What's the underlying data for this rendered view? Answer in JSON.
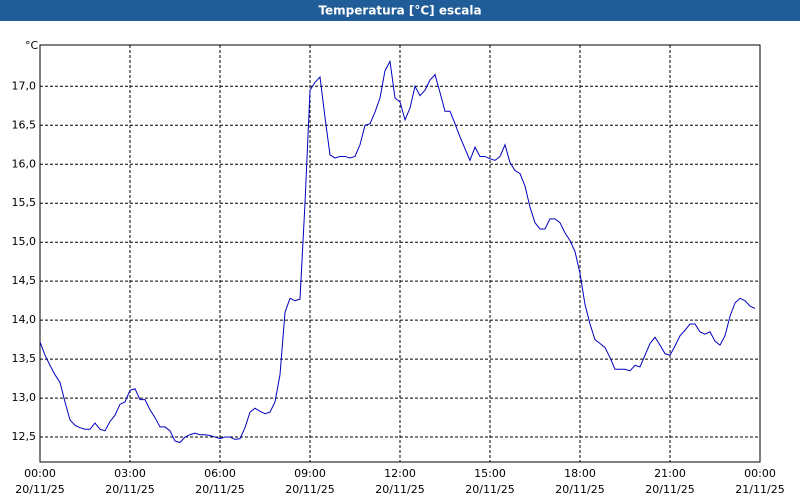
{
  "chart_data": {
    "type": "line",
    "title": "Temperatura [°C] escala",
    "y_label": "°C",
    "x": [
      0,
      10,
      20,
      30,
      40,
      50,
      60,
      70,
      80,
      90,
      100,
      110,
      120,
      130,
      140,
      150,
      160,
      170,
      180,
      190,
      200,
      210,
      220,
      230,
      240,
      250,
      260,
      270,
      280,
      290,
      300,
      310,
      320,
      330,
      340,
      350,
      360,
      370,
      380,
      390,
      400,
      410,
      420,
      430,
      440,
      450,
      460,
      470,
      480,
      490,
      500,
      510,
      520,
      530,
      540,
      550,
      560,
      570,
      580,
      590,
      600,
      610,
      620,
      630,
      640,
      650,
      660,
      670,
      680,
      690,
      700,
      710,
      720,
      730,
      740,
      750,
      760,
      770,
      780,
      790,
      800,
      810,
      820,
      830,
      840,
      850,
      860,
      870,
      880,
      890,
      900,
      910,
      920,
      930,
      940,
      950,
      960,
      970,
      980,
      990,
      1000,
      1010,
      1020,
      1030,
      1040,
      1050,
      1060,
      1070,
      1080,
      1090,
      1100,
      1110,
      1120,
      1130,
      1140,
      1150,
      1160,
      1170,
      1180,
      1190,
      1200,
      1210,
      1220,
      1230,
      1240,
      1250,
      1260,
      1270,
      1280,
      1290,
      1300,
      1310,
      1320,
      1330,
      1340,
      1350,
      1360,
      1370,
      1380,
      1390,
      1400,
      1410,
      1420,
      1430
    ],
    "series": [
      {
        "color": "#0000c0",
        "values": [
          13.72,
          13.55,
          13.42,
          13.3,
          13.2,
          12.95,
          12.72,
          12.65,
          12.62,
          12.6,
          12.6,
          12.68,
          12.6,
          12.58,
          12.7,
          12.78,
          12.92,
          12.95,
          13.1,
          13.12,
          12.98,
          12.98,
          12.85,
          12.75,
          12.63,
          12.63,
          12.58,
          12.45,
          12.43,
          12.5,
          12.53,
          12.55,
          12.53,
          12.53,
          12.52,
          12.5,
          12.48,
          12.5,
          12.5,
          12.47,
          12.48,
          12.62,
          12.82,
          12.87,
          12.83,
          12.8,
          12.82,
          12.95,
          13.3,
          14.1,
          14.28,
          14.25,
          14.27,
          15.5,
          16.95,
          17.05,
          17.12,
          16.6,
          16.12,
          16.08,
          16.1,
          16.1,
          16.08,
          16.1,
          16.25,
          16.5,
          16.52,
          16.67,
          16.85,
          17.2,
          17.32,
          16.85,
          16.8,
          16.57,
          16.72,
          17.0,
          16.88,
          16.95,
          17.08,
          17.15,
          16.92,
          16.68,
          16.68,
          16.52,
          16.35,
          16.2,
          16.05,
          16.22,
          16.1,
          16.1,
          16.07,
          16.05,
          16.1,
          16.25,
          16.02,
          15.92,
          15.88,
          15.72,
          15.45,
          15.25,
          15.17,
          15.17,
          15.3,
          15.3,
          15.25,
          15.12,
          15.02,
          14.88,
          14.6,
          14.2,
          13.95,
          13.75,
          13.7,
          13.65,
          13.52,
          13.37,
          13.37,
          13.37,
          13.35,
          13.42,
          13.4,
          13.55,
          13.7,
          13.78,
          13.68,
          13.57,
          13.55,
          13.67,
          13.8,
          13.87,
          13.95,
          13.95,
          13.85,
          13.82,
          13.85,
          13.73,
          13.68,
          13.8,
          14.05,
          14.22,
          14.28,
          14.25,
          14.18,
          14.15
        ]
      }
    ],
    "xlim": [
      0,
      1440
    ],
    "xticks": [
      {
        "value": 0,
        "label": "00:00",
        "date": "20/11/25"
      },
      {
        "value": 180,
        "label": "03:00",
        "date": "20/11/25"
      },
      {
        "value": 360,
        "label": "06:00",
        "date": "20/11/25"
      },
      {
        "value": 540,
        "label": "09:00",
        "date": "20/11/25"
      },
      {
        "value": 720,
        "label": "12:00",
        "date": "20/11/25"
      },
      {
        "value": 900,
        "label": "15:00",
        "date": "20/11/25"
      },
      {
        "value": 1080,
        "label": "18:00",
        "date": "20/11/25"
      },
      {
        "value": 1260,
        "label": "21:00",
        "date": "20/11/25"
      },
      {
        "value": 1440,
        "label": "00:00",
        "date": "21/11/25"
      }
    ],
    "ylim": [
      12.18,
      17.53
    ],
    "yticks": [
      {
        "value": 12.5,
        "label": "12,5"
      },
      {
        "value": 13,
        "label": "13,0"
      },
      {
        "value": 13.5,
        "label": "13,5"
      },
      {
        "value": 14,
        "label": "14,0"
      },
      {
        "value": 14.5,
        "label": "14,5"
      },
      {
        "value": 15,
        "label": "15,0"
      },
      {
        "value": 15.5,
        "label": "15,5"
      },
      {
        "value": 16,
        "label": "16,0"
      },
      {
        "value": 16.5,
        "label": "16,5"
      },
      {
        "value": 17,
        "label": "17,0"
      }
    ],
    "grid": true
  }
}
